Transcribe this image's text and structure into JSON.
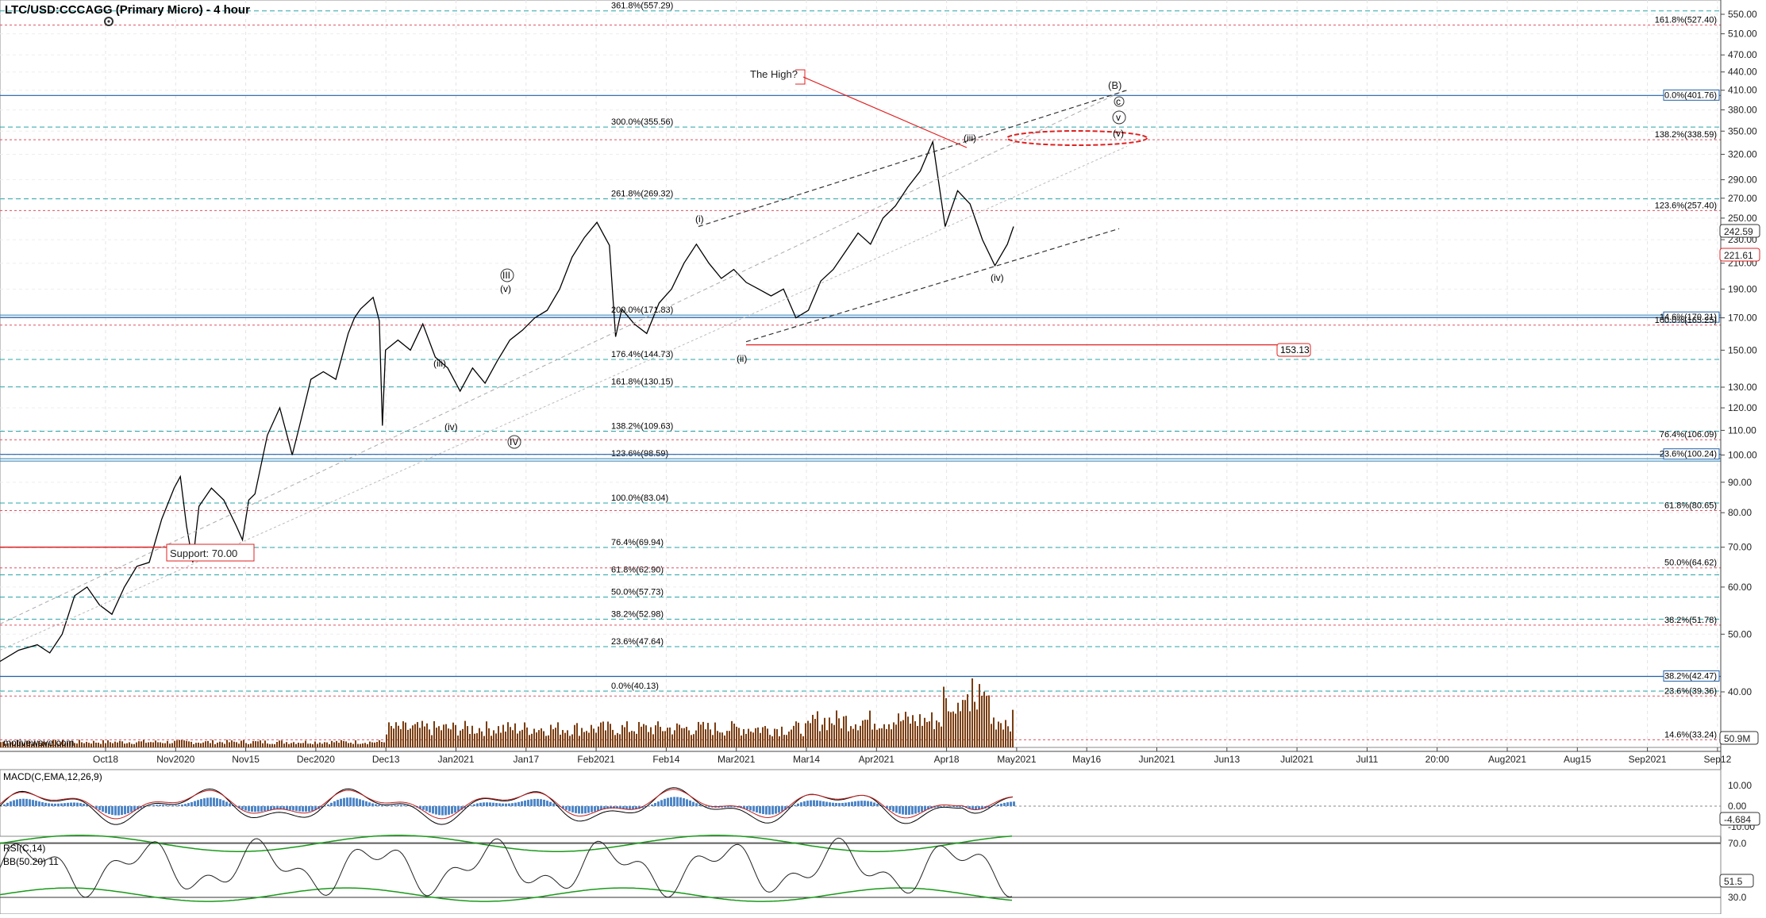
{
  "chart_data": {
    "type": "line",
    "title": "LTC/USD:CCCAGG (Primary Micro) - 4 hour",
    "watermark": "motivewave.com",
    "price_axis": {
      "scale": "log",
      "ticks": [
        550,
        510,
        470,
        440,
        410,
        380,
        350,
        320,
        290,
        270,
        250,
        230,
        210,
        190,
        170,
        150,
        130,
        120,
        110,
        100,
        90,
        80,
        70,
        60,
        50,
        40
      ],
      "ticks_labels": [
        "550.00",
        "510.00",
        "470.00",
        "440.00",
        "410.00",
        "380.00",
        "350.00",
        "320.00",
        "290.00",
        "270.00",
        "250.00",
        "230.00",
        "210.00",
        "190.00",
        "170.00",
        "150.00",
        "130.00",
        "120.00",
        "110.00",
        "100.00",
        "90.00",
        "80.00",
        "70.00",
        "60.00",
        "50.00",
        "40.00"
      ],
      "current_price_upper": "242.59",
      "current_price_lower": "221.61",
      "volume_label": "50.9M"
    },
    "time_axis": {
      "labels": [
        "Oct18",
        "Nov2020",
        "Nov15",
        "Dec2020",
        "Dec13",
        "Jan2021",
        "Jan17",
        "Feb2021",
        "Feb14",
        "Mar2021",
        "Mar14",
        "Apr2021",
        "Apr18",
        "May2021",
        "May16",
        "Jun2021",
        "Jun13",
        "Jul2021",
        "Jul11",
        "20:00",
        "Aug2021",
        "Aug15",
        "Sep2021",
        "Sep12"
      ]
    },
    "fib_center": [
      {
        "label": "361.8%(557.29)",
        "value": 557.29,
        "color": "#2aa4a8"
      },
      {
        "label": "300.0%(355.56)",
        "value": 355.56,
        "color": "#2aa4a8"
      },
      {
        "label": "261.8%(269.32)",
        "value": 269.32,
        "color": "#2aa4a8"
      },
      {
        "label": "200.0%(171.83)",
        "value": 171.83,
        "color": "#2a7fb0"
      },
      {
        "label": "176.4%(144.73)",
        "value": 144.73,
        "color": "#2aa4a8"
      },
      {
        "label": "161.8%(130.15)",
        "value": 130.15,
        "color": "#2aa4a8"
      },
      {
        "label": "138.2%(109.63)",
        "value": 109.63,
        "color": "#2aa4a8"
      },
      {
        "label": "123.6%(98.59)",
        "value": 98.59,
        "color": "#2a7fb0"
      },
      {
        "label": "100.0%(83.04)",
        "value": 83.04,
        "color": "#2aa4a8"
      },
      {
        "label": "76.4%(69.94)",
        "value": 69.94,
        "color": "#2aa4a8"
      },
      {
        "label": "61.8%(62.90)",
        "value": 62.9,
        "color": "#2aa4a8"
      },
      {
        "label": "50.0%(57.73)",
        "value": 57.73,
        "color": "#2aa4a8"
      },
      {
        "label": "38.2%(52.98)",
        "value": 52.98,
        "color": "#2aa4a8"
      },
      {
        "label": "23.6%(47.64)",
        "value": 47.64,
        "color": "#2aa4a8"
      },
      {
        "label": "0.0%(40.13)",
        "value": 40.13,
        "color": "#2aa4a8"
      }
    ],
    "fib_right": [
      {
        "label": "161.8%(527.40)",
        "value": 527.4,
        "color": "#e05060",
        "boxed": false
      },
      {
        "label": "0.0%(401.76)",
        "value": 401.76,
        "color": "#1f5fa8",
        "boxed": true
      },
      {
        "label": "138.2%(338.59)",
        "value": 338.59,
        "color": "#e05060",
        "boxed": false
      },
      {
        "label": "123.6%(257.40)",
        "value": 257.4,
        "color": "#e05060",
        "boxed": false
      },
      {
        "label": "14.6%(170.21)",
        "value": 170.21,
        "color": "#1f5fa8",
        "boxed": true
      },
      {
        "label": "100.0%(165.25)",
        "value": 165.25,
        "color": "#e05060",
        "boxed": false
      },
      {
        "label": "76.4%(106.09)",
        "value": 106.09,
        "color": "#e05060",
        "boxed": false
      },
      {
        "label": "23.6%(100.24)",
        "value": 100.24,
        "color": "#1f5fa8",
        "boxed": true
      },
      {
        "label": "61.8%(80.65)",
        "value": 80.65,
        "color": "#e05060",
        "boxed": false
      },
      {
        "label": "50.0%(64.62)",
        "value": 64.62,
        "color": "#e05060",
        "boxed": false
      },
      {
        "label": "38.2%(51.78)",
        "value": 51.78,
        "color": "#e05060",
        "boxed": false
      },
      {
        "label": "38.2%(42.47)",
        "value": 42.47,
        "color": "#1f5fa8",
        "boxed": true
      },
      {
        "label": "23.6%(39.36)",
        "value": 39.36,
        "color": "#e05060",
        "boxed": false
      },
      {
        "label": "14.6%(33.24)",
        "value": 33.24,
        "color": "#e05060",
        "boxed": false
      }
    ],
    "annotations": {
      "the_high": "The High?",
      "support": "Support: 70.00",
      "level_153": "153.13",
      "wave_B": "(B)",
      "wave_c": "c",
      "wave_v_circ": "v",
      "wave_v": "(v)",
      "wave_iii_top": "(iii)",
      "wave_iv_right": "(iv)",
      "wave_i": "(i)",
      "wave_ii": "(ii)",
      "wave_III_circ": "III",
      "wave_v_left": "(v)",
      "wave_iii_left": "(iii)",
      "wave_iv_left": "(iv)",
      "wave_IV_circ": "IV"
    },
    "price_series": [
      [
        0,
        45
      ],
      [
        0.03,
        47
      ],
      [
        0.06,
        48
      ],
      [
        0.08,
        46.5
      ],
      [
        0.1,
        50
      ],
      [
        0.12,
        58
      ],
      [
        0.14,
        60
      ],
      [
        0.16,
        56
      ],
      [
        0.18,
        54
      ],
      [
        0.2,
        60
      ],
      [
        0.22,
        65
      ],
      [
        0.24,
        66
      ],
      [
        0.26,
        78
      ],
      [
        0.28,
        88
      ],
      [
        0.29,
        92
      ],
      [
        0.3,
        76
      ],
      [
        0.31,
        66
      ],
      [
        0.32,
        82
      ],
      [
        0.34,
        88
      ],
      [
        0.36,
        84
      ],
      [
        0.38,
        76
      ],
      [
        0.39,
        72
      ],
      [
        0.4,
        84
      ],
      [
        0.41,
        86
      ],
      [
        0.43,
        108
      ],
      [
        0.45,
        120
      ],
      [
        0.47,
        100
      ],
      [
        0.48,
        110
      ],
      [
        0.5,
        134
      ],
      [
        0.52,
        138
      ],
      [
        0.54,
        134
      ],
      [
        0.56,
        160
      ],
      [
        0.57,
        170
      ],
      [
        0.58,
        176
      ],
      [
        0.6,
        184
      ],
      [
        0.61,
        168
      ],
      [
        0.615,
        112
      ],
      [
        0.62,
        150
      ],
      [
        0.64,
        156
      ],
      [
        0.66,
        150
      ],
      [
        0.68,
        166
      ],
      [
        0.7,
        146
      ],
      [
        0.72,
        140
      ],
      [
        0.74,
        128
      ],
      [
        0.76,
        140
      ],
      [
        0.78,
        132
      ],
      [
        0.8,
        144
      ],
      [
        0.82,
        156
      ],
      [
        0.84,
        162
      ],
      [
        0.86,
        170
      ],
      [
        0.88,
        175
      ],
      [
        0.9,
        190
      ],
      [
        0.92,
        215
      ],
      [
        0.94,
        232
      ],
      [
        0.96,
        246
      ],
      [
        0.98,
        225
      ],
      [
        0.99,
        158
      ],
      [
        1.0,
        176
      ],
      [
        1.02,
        166
      ],
      [
        1.04,
        160
      ],
      [
        1.06,
        180
      ],
      [
        1.08,
        190
      ],
      [
        1.1,
        210
      ],
      [
        1.12,
        226
      ],
      [
        1.14,
        210
      ],
      [
        1.16,
        198
      ],
      [
        1.18,
        205
      ],
      [
        1.2,
        195
      ],
      [
        1.22,
        190
      ],
      [
        1.24,
        185
      ],
      [
        1.26,
        190
      ],
      [
        1.28,
        170
      ],
      [
        1.3,
        175
      ],
      [
        1.32,
        196
      ],
      [
        1.34,
        205
      ],
      [
        1.36,
        220
      ],
      [
        1.38,
        236
      ],
      [
        1.4,
        226
      ],
      [
        1.42,
        250
      ],
      [
        1.44,
        262
      ],
      [
        1.46,
        282
      ],
      [
        1.48,
        300
      ],
      [
        1.5,
        336
      ],
      [
        1.52,
        242
      ],
      [
        1.54,
        278
      ],
      [
        1.56,
        264
      ],
      [
        1.58,
        230
      ],
      [
        1.6,
        208
      ],
      [
        1.62,
        226
      ],
      [
        1.63,
        242
      ]
    ],
    "macd": {
      "label": "MACD(C,EMA,12,26,9)",
      "ticks": [
        "10.00",
        "0.00",
        "-10.00"
      ],
      "current": "-4.684"
    },
    "rsi": {
      "label": "RSI(C,14)",
      "ticks": [
        "70.0",
        "30.0"
      ],
      "current": "51.5",
      "legend": "BB(50.20) 11"
    }
  }
}
